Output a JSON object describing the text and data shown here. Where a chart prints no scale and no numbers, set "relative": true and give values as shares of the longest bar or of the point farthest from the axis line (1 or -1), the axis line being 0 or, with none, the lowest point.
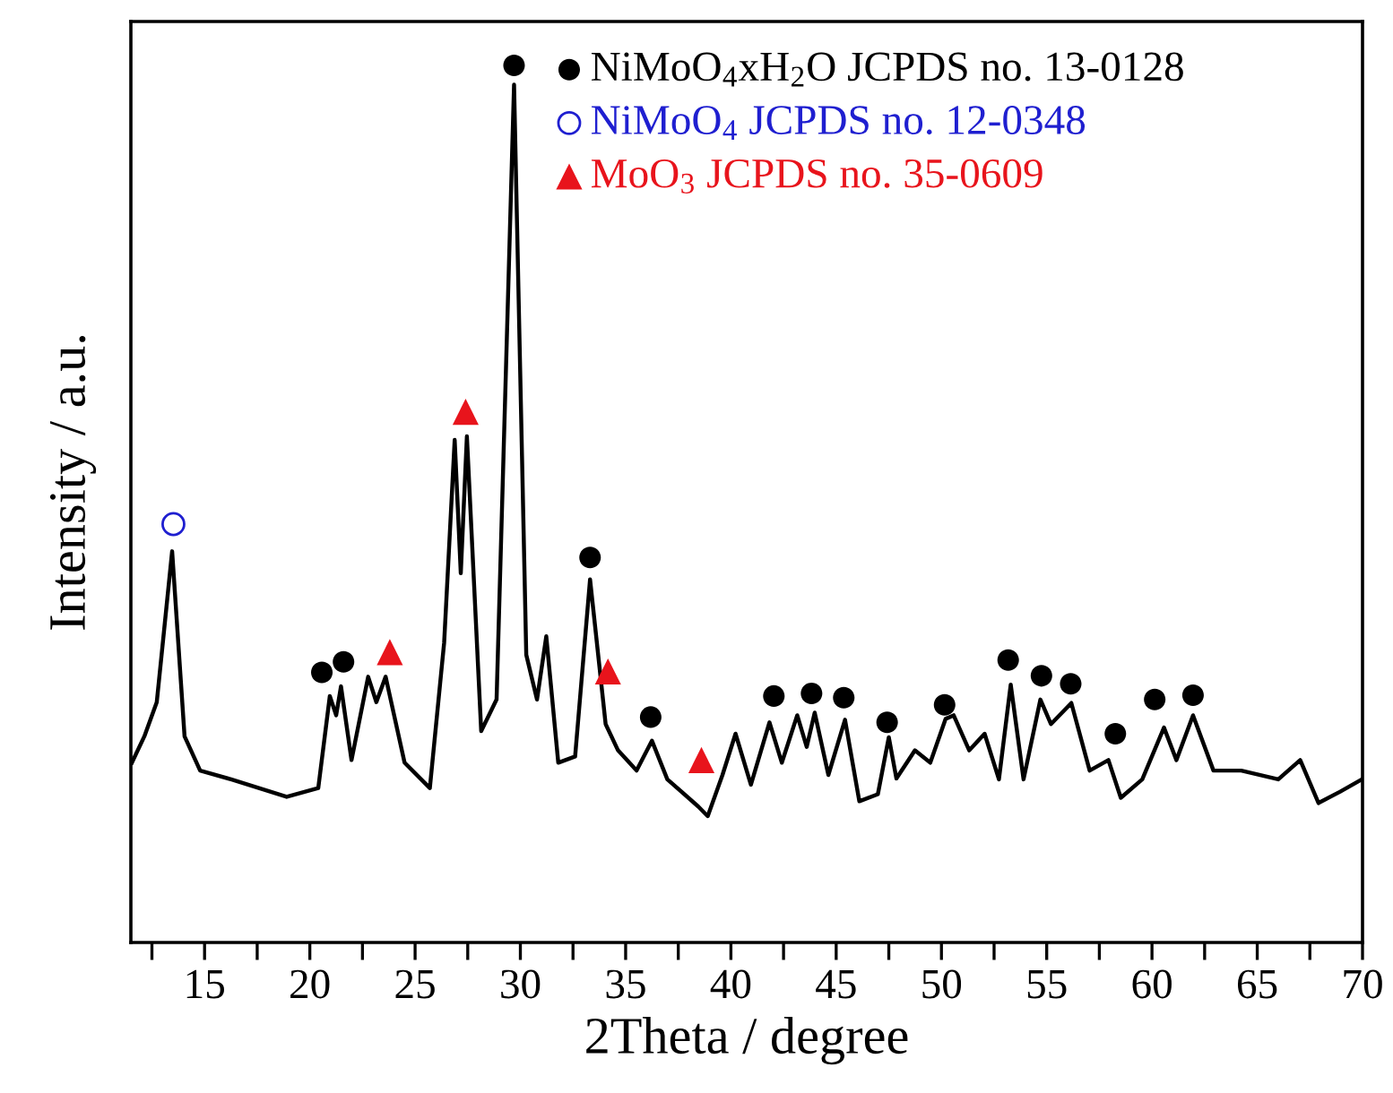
{
  "chart_data": {
    "type": "line",
    "relative": true,
    "xlabel": "2Theta / degree",
    "ylabel": "Intensity / a.u.",
    "xlim": [
      11.5,
      70
    ],
    "xticks": [
      {
        "value": 12.5,
        "label": null
      },
      15,
      {
        "value": 17.5,
        "label": null
      },
      20,
      {
        "value": 22.5,
        "label": null
      },
      25,
      {
        "value": 27.5,
        "label": null
      },
      30,
      {
        "value": 32.5,
        "label": null
      },
      35,
      {
        "value": 37.5,
        "label": null
      },
      40,
      {
        "value": 42.5,
        "label": null
      },
      45,
      {
        "value": 47.5,
        "label": null
      },
      50,
      {
        "value": 52.5,
        "label": null
      },
      55,
      {
        "value": 57.5,
        "label": null
      },
      60,
      {
        "value": 62.5,
        "label": null
      },
      65,
      {
        "value": 67.5,
        "label": null
      },
      70
    ],
    "legend": "top right",
    "series": [
      {
        "color": "#000000",
        "line_style": "solid",
        "x": [
          11.55,
          12.14,
          12.73,
          13.46,
          14.05,
          14.79,
          16.26,
          18.9,
          20.4,
          20.95,
          21.25,
          21.48,
          21.98,
          22.77,
          23.16,
          23.6,
          24.5,
          25.7,
          26.38,
          26.88,
          27.17,
          27.46,
          28.14,
          28.87,
          29.7,
          30.28,
          30.79,
          31.23,
          31.8,
          32.6,
          33.31,
          34.05,
          34.64,
          35.52,
          36.25,
          36.98,
          38.45,
          38.9,
          39.6,
          40.22,
          40.95,
          41.83,
          42.42,
          43.15,
          43.6,
          43.98,
          44.63,
          45.42,
          46.1,
          46.98,
          47.5,
          47.86,
          48.74,
          49.47,
          50.2,
          50.58,
          51.32,
          52.05,
          52.73,
          53.29,
          53.9,
          54.7,
          55.2,
          56.17,
          57.04,
          57.93,
          58.52,
          59.54,
          60.57,
          61.16,
          61.95,
          62.92,
          64.24,
          66.0,
          67.04,
          67.91,
          68.94,
          69.97
        ],
        "values": [
          0.205,
          0.235,
          0.274,
          0.446,
          0.235,
          0.196,
          0.186,
          0.166,
          0.176,
          0.281,
          0.259,
          0.292,
          0.208,
          0.303,
          0.274,
          0.303,
          0.205,
          0.176,
          0.342,
          0.573,
          0.421,
          0.577,
          0.241,
          0.277,
          0.978,
          0.328,
          0.277,
          0.349,
          0.205,
          0.212,
          0.414,
          0.249,
          0.219,
          0.196,
          0.23,
          0.186,
          0.155,
          0.144,
          0.191,
          0.238,
          0.18,
          0.251,
          0.205,
          0.259,
          0.223,
          0.262,
          0.191,
          0.254,
          0.161,
          0.169,
          0.234,
          0.187,
          0.219,
          0.205,
          0.255,
          0.259,
          0.219,
          0.238,
          0.186,
          0.294,
          0.186,
          0.277,
          0.249,
          0.273,
          0.196,
          0.208,
          0.165,
          0.186,
          0.245,
          0.208,
          0.259,
          0.196,
          0.196,
          0.186,
          0.208,
          0.159,
          0.172,
          0.186
        ]
      },
      {
        "type": "scatter",
        "name": "NiMoO$_{4}$xH$_{2}$O JCPDS no. 13-0128",
        "color": "#000000",
        "marker": "circle",
        "x": [
          20.57,
          21.6,
          29.7,
          33.31,
          36.19,
          42.04,
          43.83,
          45.36,
          47.42,
          50.15,
          53.17,
          54.75,
          56.14,
          58.26,
          60.13,
          61.95
        ],
        "values": [
          0.308,
          0.32,
          1.0,
          0.439,
          0.257,
          0.281,
          0.284,
          0.279,
          0.251,
          0.271,
          0.322,
          0.304,
          0.295,
          0.238,
          0.277,
          0.282
        ]
      },
      {
        "type": "scatter",
        "name": "NiMoO$_{4}$ JCPDS no. 12-0348",
        "color": "#1f1fd0",
        "marker": "open circle",
        "x": [
          13.52
        ],
        "values": [
          0.477
        ]
      },
      {
        "type": "scatter",
        "name": "MoO$_{3}$ JCPDS no. 35-0609",
        "color": "#e8141c",
        "marker": "triangle",
        "x": [
          23.8,
          27.4,
          34.16,
          38.6
        ],
        "values": [
          0.331,
          0.605,
          0.309,
          0.208
        ]
      }
    ]
  }
}
